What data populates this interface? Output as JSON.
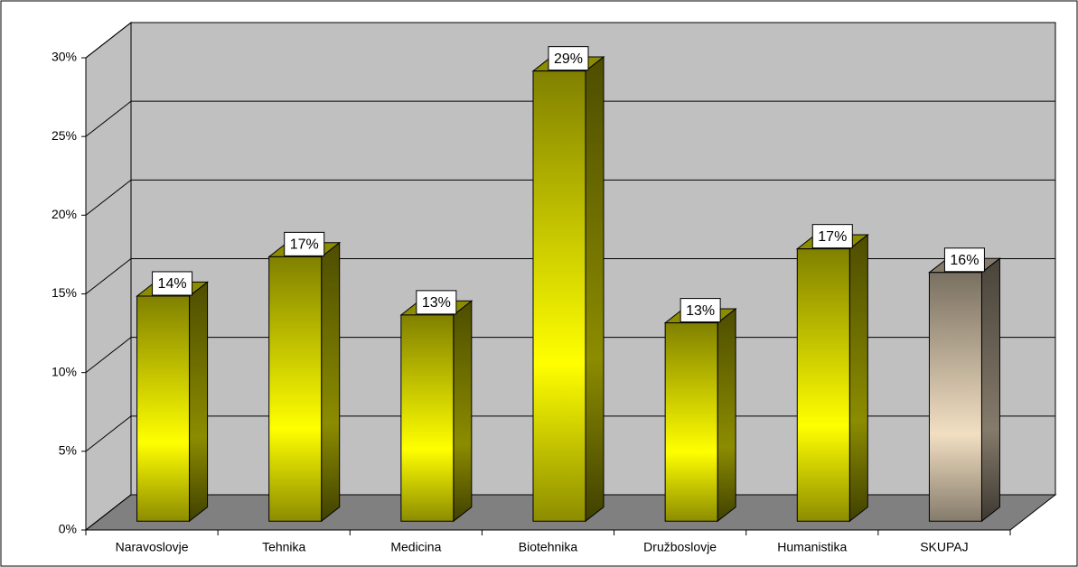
{
  "chart_data": {
    "type": "bar3d",
    "categories": [
      "Naravoslovje",
      "Tehnika",
      "Medicina",
      "Biotehnika",
      "Družboslovje",
      "Humanistika",
      "SKUPAJ"
    ],
    "values": [
      14.3,
      16.8,
      13.1,
      28.6,
      12.6,
      17.3,
      15.8
    ],
    "value_labels": [
      "14%",
      "17%",
      "13%",
      "29%",
      "13%",
      "17%",
      "16%"
    ],
    "colors": [
      "#ffff00",
      "#ffff00",
      "#ffff00",
      "#ffff00",
      "#ffff00",
      "#ffff00",
      "#f2dfc2"
    ],
    "ylim": [
      0,
      30
    ],
    "yticks": [
      {
        "value": 0,
        "label": "0%"
      },
      {
        "value": 5,
        "label": "5%"
      },
      {
        "value": 10,
        "label": "10%"
      },
      {
        "value": 15,
        "label": "15%"
      },
      {
        "value": 20,
        "label": "20%"
      },
      {
        "value": 25,
        "label": "25%"
      },
      {
        "value": 30,
        "label": "30%"
      }
    ],
    "grid": true
  }
}
